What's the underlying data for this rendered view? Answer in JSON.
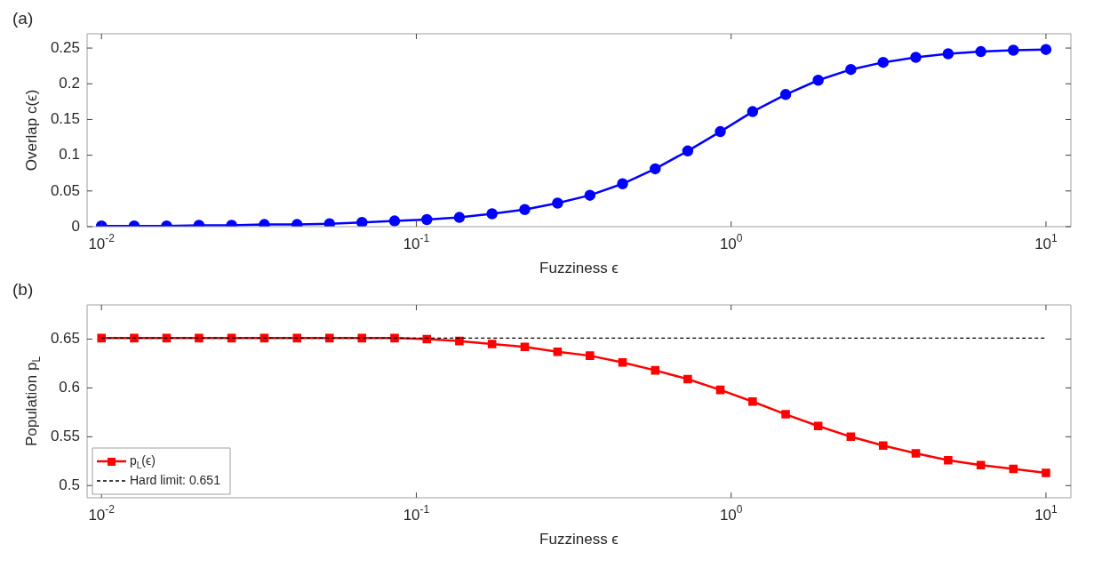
{
  "chart_data": [
    {
      "type": "line",
      "title": "(a)",
      "xlabel": "Fuzziness ϵ",
      "ylabel": "Overlap c(ϵ)",
      "log": "x",
      "grid": false,
      "marker": "circle",
      "line_style": "solid",
      "x": [
        0.01,
        0.0127,
        0.0161,
        0.0204,
        0.0259,
        0.0329,
        0.0418,
        0.053,
        0.0672,
        0.0853,
        0.108,
        0.137,
        0.174,
        0.221,
        0.281,
        0.356,
        0.452,
        0.574,
        0.728,
        0.924,
        1.17,
        1.49,
        1.89,
        2.4,
        3.04,
        3.86,
        4.89,
        6.21,
        7.88,
        10
      ],
      "xlim": [
        0.009,
        12
      ],
      "xticks": [
        {
          "value": 0.01,
          "label": "10$^{-2}$"
        },
        {
          "value": 0.1,
          "label": "10$^{-1}$"
        },
        {
          "value": 1,
          "label": "10$^{0}$"
        },
        {
          "value": 10,
          "label": "10$^{1}$"
        }
      ],
      "ylim": [
        0,
        0.27
      ],
      "yticks": [
        0,
        0.05,
        0.1,
        0.15,
        0.2,
        0.25
      ],
      "series": [
        {
          "color": "#0000ff",
          "values": [
            0.001,
            0.001,
            0.001,
            0.002,
            0.002,
            0.003,
            0.003,
            0.004,
            0.006,
            0.008,
            0.01,
            0.013,
            0.018,
            0.024,
            0.033,
            0.044,
            0.06,
            0.081,
            0.106,
            0.133,
            0.161,
            0.185,
            0.205,
            0.22,
            0.23,
            0.237,
            0.242,
            0.245,
            0.247,
            0.248
          ]
        }
      ]
    },
    {
      "type": "line",
      "title": "(b)",
      "xlabel": "Fuzziness ϵ",
      "ylabel": "Population p$_{L}$",
      "log": "x",
      "grid": false,
      "legend": "bottom left",
      "line_style": "solid",
      "x": [
        0.01,
        0.0127,
        0.0161,
        0.0204,
        0.0259,
        0.0329,
        0.0418,
        0.053,
        0.0672,
        0.0853,
        0.108,
        0.137,
        0.174,
        0.221,
        0.281,
        0.356,
        0.452,
        0.574,
        0.728,
        0.924,
        1.17,
        1.49,
        1.89,
        2.4,
        3.04,
        3.86,
        4.89,
        6.21,
        7.88,
        10
      ],
      "xlim": [
        0.009,
        12
      ],
      "xticks": [
        {
          "value": 0.01,
          "label": "10$^{-2}$"
        },
        {
          "value": 0.1,
          "label": "10$^{-1}$"
        },
        {
          "value": 1,
          "label": "10$^{0}$"
        },
        {
          "value": 10,
          "label": "10$^{1}$"
        }
      ],
      "ylim": [
        0.4875,
        0.685
      ],
      "yticks": [
        0.5,
        0.55,
        0.6,
        0.65
      ],
      "series": [
        {
          "name": "p$_{L}$(ϵ)",
          "color": "#ff0000",
          "marker": "square",
          "values": [
            0.651,
            0.651,
            0.651,
            0.651,
            0.651,
            0.651,
            0.651,
            0.651,
            0.651,
            0.651,
            0.65,
            0.648,
            0.645,
            0.642,
            0.637,
            0.633,
            0.626,
            0.618,
            0.609,
            0.598,
            0.586,
            0.573,
            0.561,
            0.55,
            0.541,
            0.533,
            0.526,
            0.521,
            0.517,
            0.513
          ]
        },
        {
          "name": "Hard limit: 0.651",
          "color": "#000000",
          "marker": "none",
          "line_style": "dashed",
          "x": [
            0.01,
            10
          ],
          "values": [
            0.651,
            0.651
          ]
        }
      ]
    }
  ]
}
